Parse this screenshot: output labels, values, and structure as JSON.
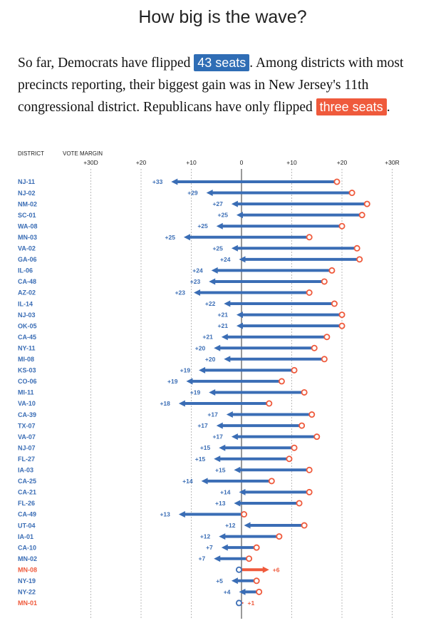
{
  "title": "How big is the wave?",
  "intro": {
    "part1": "So far, Democrats have flipped ",
    "dem_badge": "43 seats",
    "part2": ". Among districts with most precincts reporting, their biggest gain was in New Jersey's 11th congressional district. Republicans have only flipped ",
    "rep_badge": "three seats",
    "part3": "."
  },
  "colors": {
    "dem": "#3a6db5",
    "rep": "#ef5a3c",
    "grid": "#bbbbbb",
    "label": "#3a6db5"
  },
  "chart_data": {
    "type": "arrow-dot",
    "column_headers": {
      "district": "DISTRICT",
      "margin": "VOTE MARGIN"
    },
    "x_ticks": [
      {
        "value": -30,
        "label": "+30D"
      },
      {
        "value": -20,
        "label": "+20"
      },
      {
        "value": -10,
        "label": "+10"
      },
      {
        "value": 0,
        "label": "0"
      },
      {
        "value": 10,
        "label": "+10"
      },
      {
        "value": 20,
        "label": "+20"
      },
      {
        "value": 30,
        "label": "+30R"
      }
    ],
    "xlim": [
      -30,
      30
    ],
    "rows": [
      {
        "district": "NJ-11",
        "prev": 19,
        "curr": -14,
        "label": "+33",
        "party": "D"
      },
      {
        "district": "NJ-02",
        "prev": 22,
        "curr": -7,
        "label": "+29",
        "party": "D"
      },
      {
        "district": "NM-02",
        "prev": 25,
        "curr": -2,
        "label": "+27",
        "party": "D"
      },
      {
        "district": "SC-01",
        "prev": 24,
        "curr": -1,
        "label": "+25",
        "party": "D"
      },
      {
        "district": "WA-08",
        "prev": 20,
        "curr": -5,
        "label": "+25",
        "party": "D"
      },
      {
        "district": "MN-03",
        "prev": 13.5,
        "curr": -11.5,
        "label": "+25",
        "party": "D"
      },
      {
        "district": "VA-02",
        "prev": 23,
        "curr": -2,
        "label": "+25",
        "party": "D"
      },
      {
        "district": "GA-06",
        "prev": 23.5,
        "curr": -0.5,
        "label": "+24",
        "party": "D"
      },
      {
        "district": "IL-06",
        "prev": 18,
        "curr": -6,
        "label": "+24",
        "party": "D"
      },
      {
        "district": "CA-48",
        "prev": 16.5,
        "curr": -6.5,
        "label": "+23",
        "party": "D"
      },
      {
        "district": "AZ-02",
        "prev": 13.5,
        "curr": -9.5,
        "label": "+23",
        "party": "D"
      },
      {
        "district": "IL-14",
        "prev": 18.5,
        "curr": -3.5,
        "label": "+22",
        "party": "D"
      },
      {
        "district": "NJ-03",
        "prev": 20,
        "curr": -1,
        "label": "+21",
        "party": "D"
      },
      {
        "district": "OK-05",
        "prev": 20,
        "curr": -1,
        "label": "+21",
        "party": "D"
      },
      {
        "district": "CA-45",
        "prev": 17,
        "curr": -4,
        "label": "+21",
        "party": "D"
      },
      {
        "district": "NY-11",
        "prev": 14.5,
        "curr": -5.5,
        "label": "+20",
        "party": "D"
      },
      {
        "district": "MI-08",
        "prev": 16.5,
        "curr": -3.5,
        "label": "+20",
        "party": "D"
      },
      {
        "district": "KS-03",
        "prev": 10.5,
        "curr": -8.5,
        "label": "+19",
        "party": "D"
      },
      {
        "district": "CO-06",
        "prev": 8,
        "curr": -11,
        "label": "+19",
        "party": "D"
      },
      {
        "district": "MI-11",
        "prev": 12.5,
        "curr": -6.5,
        "label": "+19",
        "party": "D"
      },
      {
        "district": "VA-10",
        "prev": 5.5,
        "curr": -12.5,
        "label": "+18",
        "party": "D"
      },
      {
        "district": "CA-39",
        "prev": 14,
        "curr": -3,
        "label": "+17",
        "party": "D"
      },
      {
        "district": "TX-07",
        "prev": 12,
        "curr": -5,
        "label": "+17",
        "party": "D"
      },
      {
        "district": "VA-07",
        "prev": 15,
        "curr": -2,
        "label": "+17",
        "party": "D"
      },
      {
        "district": "NJ-07",
        "prev": 10.5,
        "curr": -4.5,
        "label": "+15",
        "party": "D"
      },
      {
        "district": "FL-27",
        "prev": 9.5,
        "curr": -5.5,
        "label": "+15",
        "party": "D"
      },
      {
        "district": "IA-03",
        "prev": 13.5,
        "curr": -1.5,
        "label": "+15",
        "party": "D"
      },
      {
        "district": "CA-25",
        "prev": 6,
        "curr": -8,
        "label": "+14",
        "party": "D"
      },
      {
        "district": "CA-21",
        "prev": 13.5,
        "curr": -0.5,
        "label": "+14",
        "party": "D"
      },
      {
        "district": "FL-26",
        "prev": 11.5,
        "curr": -1.5,
        "label": "+13",
        "party": "D"
      },
      {
        "district": "CA-49",
        "prev": 0.5,
        "curr": -12.5,
        "label": "+13",
        "party": "D"
      },
      {
        "district": "UT-04",
        "prev": 12.5,
        "curr": 0.5,
        "label": "+12",
        "party": "D"
      },
      {
        "district": "IA-01",
        "prev": 7.5,
        "curr": -4.5,
        "label": "+12",
        "party": "D"
      },
      {
        "district": "CA-10",
        "prev": 3,
        "curr": -4,
        "label": "+7",
        "party": "D"
      },
      {
        "district": "MN-02",
        "prev": 1.5,
        "curr": -5.5,
        "label": "+7",
        "party": "D"
      },
      {
        "district": "MN-08",
        "prev": -0.5,
        "curr": 5.5,
        "label": "+6",
        "party": "R"
      },
      {
        "district": "NY-19",
        "prev": 3,
        "curr": -2,
        "label": "+5",
        "party": "D"
      },
      {
        "district": "NY-22",
        "prev": 3.5,
        "curr": -0.5,
        "label": "+4",
        "party": "D"
      },
      {
        "district": "MN-01",
        "prev": -0.5,
        "curr": 0.5,
        "label": "+1",
        "party": "R"
      }
    ]
  }
}
